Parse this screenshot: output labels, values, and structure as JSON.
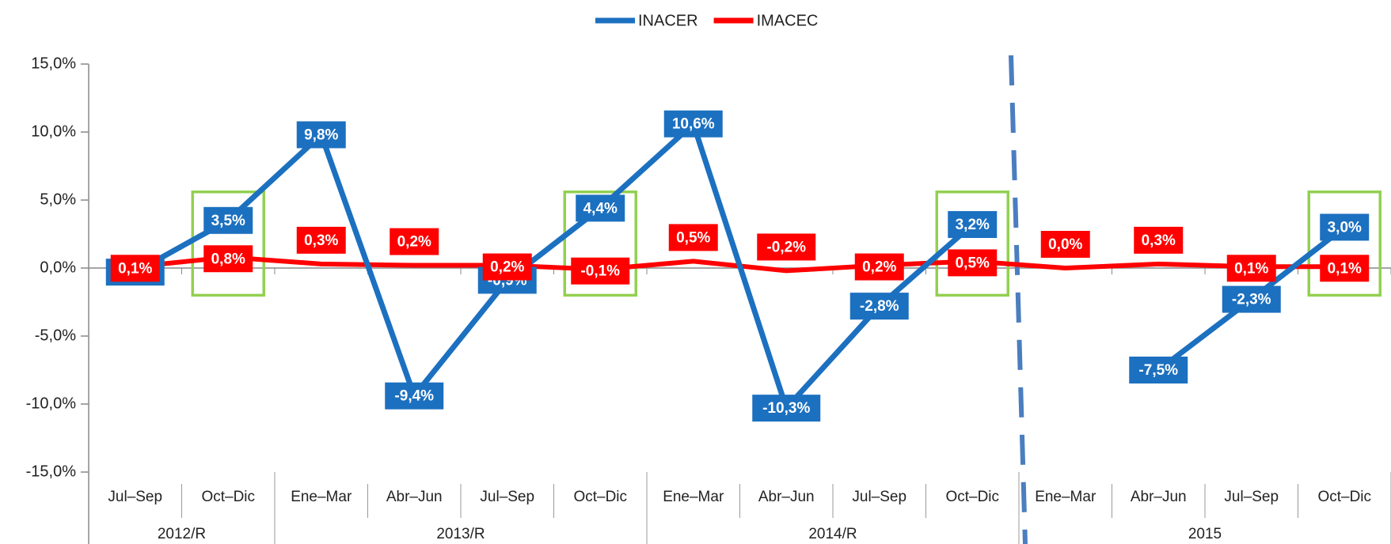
{
  "chart_data": {
    "type": "line",
    "categories": [
      "Jul–Sep",
      "Oct–Dic",
      "Ene–Mar",
      "Abr–Jun",
      "Jul–Sep",
      "Oct–Dic",
      "Ene–Mar",
      "Abr–Jun",
      "Jul–Sep",
      "Oct–Dic",
      "Ene–Mar",
      "Abr–Jun",
      "Jul–Sep",
      "Oct–Dic"
    ],
    "category_groups": [
      {
        "label": "2012/R",
        "count": 2
      },
      {
        "label": "2013/R",
        "count": 4
      },
      {
        "label": "2014/R",
        "count": 4
      },
      {
        "label": "2015",
        "count": 4
      }
    ],
    "series": [
      {
        "name": "INACER",
        "color": "#1c70c0",
        "values": [
          -0.3,
          3.5,
          9.8,
          -9.4,
          -0.9,
          4.4,
          10.6,
          -10.3,
          -2.8,
          3.2,
          null,
          -7.5,
          -2.3,
          3.0
        ],
        "value_labels": [
          "-0,3%",
          "3,5%",
          "9,8%",
          "-9,4%",
          "-0,9%",
          "4,4%",
          "10,6%",
          "-10,3%",
          "-2,8%",
          "3,2%",
          null,
          "-7,5%",
          "-2,3%",
          "3,0%"
        ]
      },
      {
        "name": "IMACEC",
        "color": "#ff0000",
        "values": [
          0.1,
          0.8,
          0.3,
          0.2,
          0.2,
          -0.1,
          0.5,
          -0.2,
          0.2,
          0.5,
          0.0,
          0.3,
          0.1,
          0.1
        ],
        "value_labels": [
          "0,1%",
          "0,8%",
          "0,3%",
          "0,2%",
          "0,2%",
          "-0,1%",
          "0,5%",
          "-0,2%",
          "0,2%",
          "0,5%",
          "0,0%",
          "0,3%",
          "0,1%",
          "0,1%"
        ]
      }
    ],
    "ylim": [
      -15,
      15
    ],
    "yticks": [
      {
        "value": -15,
        "label": "-15,0%"
      },
      {
        "value": -10,
        "label": "-10,0%"
      },
      {
        "value": -5,
        "label": "-5,0%"
      },
      {
        "value": 0,
        "label": "0,0%"
      },
      {
        "value": 5,
        "label": "5,0%"
      },
      {
        "value": 10,
        "label": "10,0%"
      },
      {
        "value": 15,
        "label": "15,0%"
      }
    ],
    "highlight_categories": [
      1,
      5,
      9,
      13
    ],
    "divider_after_category": 9,
    "legend": "top"
  }
}
